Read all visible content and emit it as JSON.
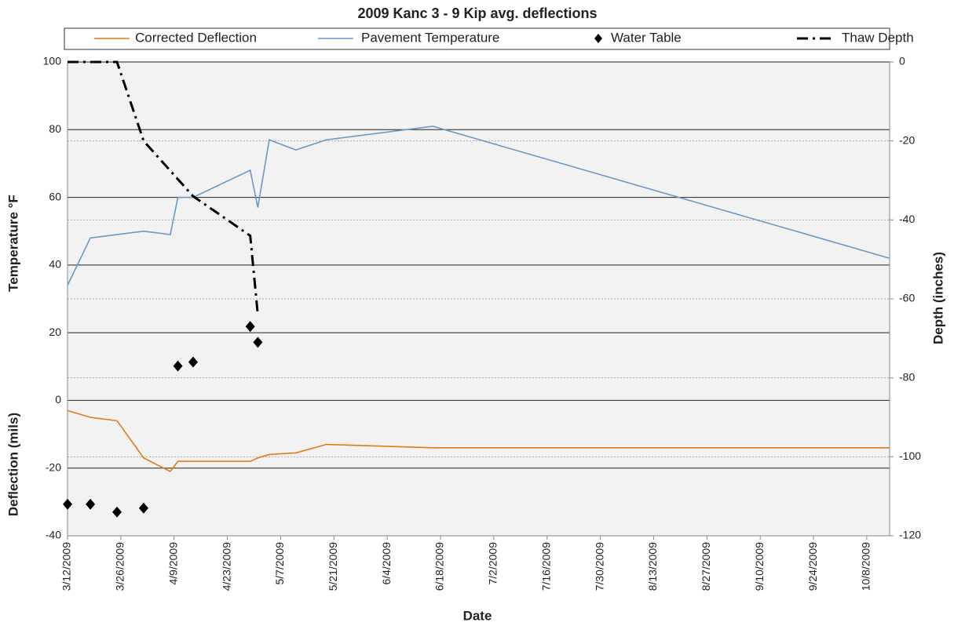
{
  "chart_data": {
    "type": "line",
    "title": "2009 Kanc 3 - 9 Kip avg. deflections",
    "xlabel": "Date",
    "ylabel": "Temperature °F",
    "ylabel2": "Deflection (mils)",
    "y2label": "Depth (inches)",
    "xlim": [
      "2009-03-12",
      "2009-10-14"
    ],
    "xticks": [
      {
        "value": "2009-03-12",
        "label": "3/12/2009"
      },
      {
        "value": "2009-03-26",
        "label": "3/26/2009"
      },
      {
        "value": "2009-04-09",
        "label": "4/9/2009"
      },
      {
        "value": "2009-04-23",
        "label": "4/23/2009"
      },
      {
        "value": "2009-05-07",
        "label": "5/7/2009"
      },
      {
        "value": "2009-05-21",
        "label": "5/21/2009"
      },
      {
        "value": "2009-06-04",
        "label": "6/4/2009"
      },
      {
        "value": "2009-06-18",
        "label": "6/18/2009"
      },
      {
        "value": "2009-07-02",
        "label": "7/2/2009"
      },
      {
        "value": "2009-07-16",
        "label": "7/16/2009"
      },
      {
        "value": "2009-07-30",
        "label": "7/30/2009"
      },
      {
        "value": "2009-08-13",
        "label": "8/13/2009"
      },
      {
        "value": "2009-08-27",
        "label": "8/27/2009"
      },
      {
        "value": "2009-09-10",
        "label": "9/10/2009"
      },
      {
        "value": "2009-09-24",
        "label": "9/24/2009"
      },
      {
        "value": "2009-10-08",
        "label": "10/8/2009"
      }
    ],
    "ylim": [
      -40,
      100
    ],
    "yticks": [
      -40,
      -20,
      0,
      20,
      40,
      60,
      80,
      100
    ],
    "y2lim": [
      -120,
      0
    ],
    "y2ticks": [
      -120,
      -100,
      -80,
      -60,
      -40,
      -20,
      0
    ],
    "grid": true,
    "series": [
      {
        "name": "Corrected Deflection",
        "color": "#e07b17",
        "style": "solid",
        "axis": "y",
        "x": [
          "2009-03-12",
          "2009-03-18",
          "2009-03-25",
          "2009-04-01",
          "2009-04-08",
          "2009-04-10",
          "2009-04-14",
          "2009-04-29",
          "2009-05-01",
          "2009-05-04",
          "2009-05-11",
          "2009-05-19",
          "2009-06-16",
          "2009-10-14"
        ],
        "values": [
          -3,
          -5,
          -6,
          -17,
          -21,
          -18,
          -18,
          -18,
          -17,
          -16,
          -15.5,
          -13,
          -14,
          -14
        ]
      },
      {
        "name": "Pavement Temperature",
        "color": "#6a98c8",
        "style": "solid",
        "axis": "y",
        "x": [
          "2009-03-12",
          "2009-03-18",
          "2009-04-01",
          "2009-04-08",
          "2009-04-10",
          "2009-04-14",
          "2009-04-29",
          "2009-05-01",
          "2009-05-04",
          "2009-05-11",
          "2009-05-19",
          "2009-06-16",
          "2009-10-14"
        ],
        "values": [
          34,
          48,
          50,
          49,
          60,
          60,
          68,
          57,
          77,
          74,
          77,
          81,
          42
        ]
      },
      {
        "name": "Water Table",
        "color": "#000000",
        "style": "diamond",
        "axis": "y2",
        "x": [
          "2009-03-12",
          "2009-03-18",
          "2009-03-25",
          "2009-04-01",
          "2009-04-10",
          "2009-04-14",
          "2009-04-29",
          "2009-05-01"
        ],
        "values": [
          -112,
          -112,
          -114,
          -113,
          -77,
          -76,
          -67,
          -71
        ]
      },
      {
        "name": "Thaw Depth",
        "color": "#000000",
        "style": "dashdot",
        "axis": "y2",
        "x": [
          "2009-03-12",
          "2009-03-18",
          "2009-03-25",
          "2009-04-01",
          "2009-04-14",
          "2009-04-29",
          "2009-05-01"
        ],
        "values": [
          0,
          0,
          0,
          -20,
          -34,
          -44,
          -64
        ]
      }
    ]
  }
}
